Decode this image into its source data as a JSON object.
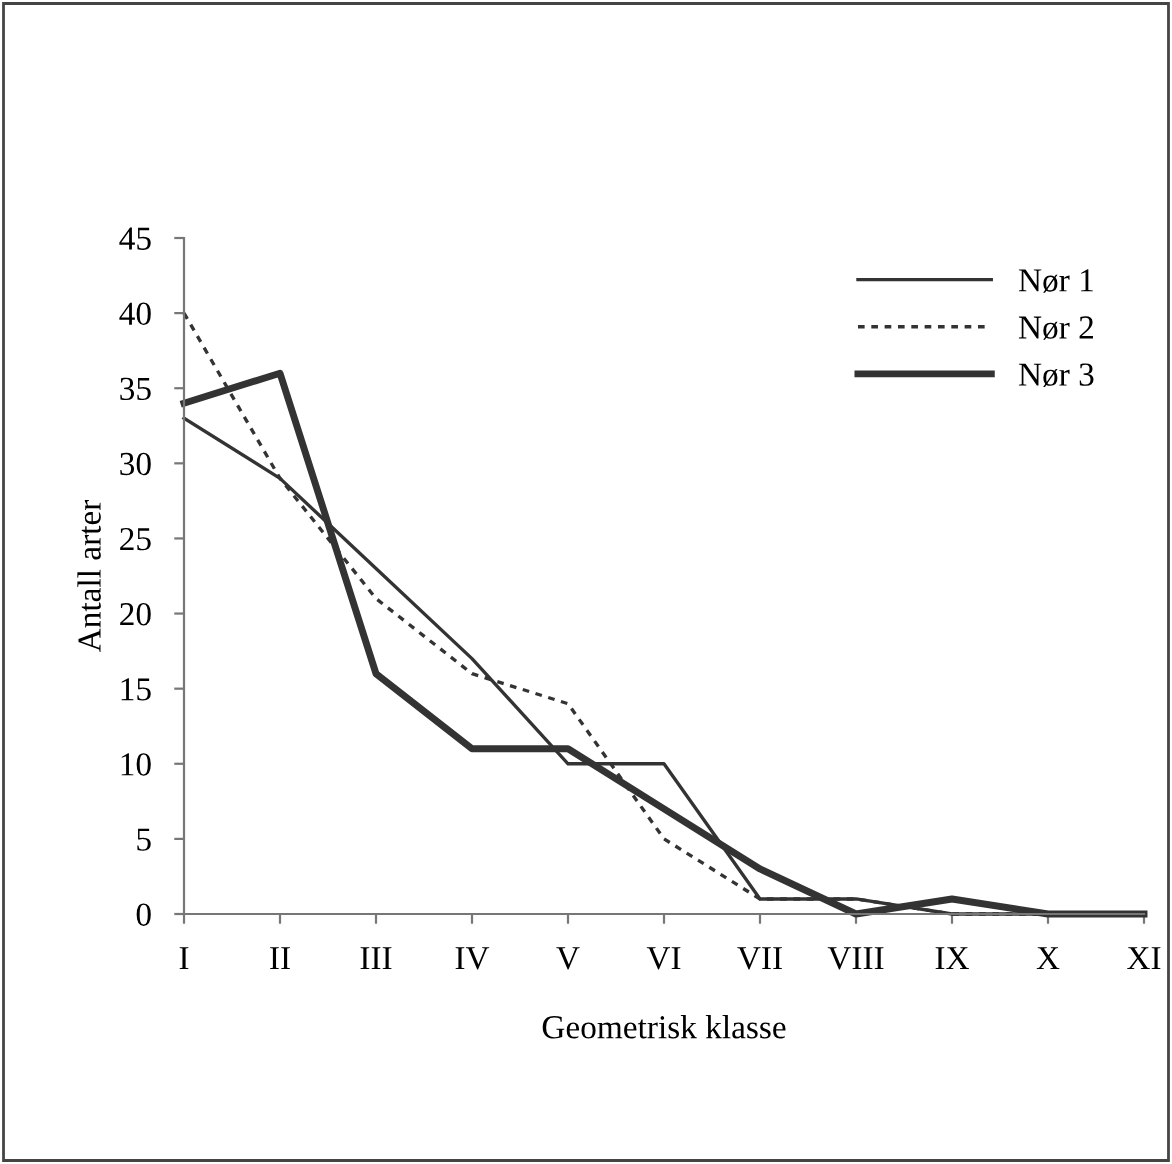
{
  "chart_data": {
    "type": "line",
    "xlabel": "Geometrisk klasse",
    "ylabel": "Antall arter",
    "categories": [
      "I",
      "II",
      "III",
      "IV",
      "V",
      "VI",
      "VII",
      "VIII",
      "IX",
      "X",
      "XI"
    ],
    "series": [
      {
        "name": "Nør 1",
        "color": "#333333",
        "line_style": "solid",
        "values": [
          33,
          29,
          23,
          17,
          10,
          10,
          1,
          1,
          0,
          0,
          0
        ]
      },
      {
        "name": "Nør 2",
        "color": "#333333",
        "line_style": "dotted",
        "values": [
          40,
          29,
          21,
          16,
          14,
          5,
          1,
          1,
          0,
          0,
          0
        ]
      },
      {
        "name": "Nør 3",
        "color": "#333333",
        "line_style": "solid",
        "values": [
          34,
          36,
          16,
          11,
          11,
          7,
          3,
          0,
          1,
          0,
          0
        ]
      }
    ],
    "ylim": [
      0,
      45
    ],
    "yticks": [
      0,
      5,
      10,
      15,
      20,
      25,
      30,
      35,
      40,
      45
    ],
    "grid": false,
    "legend": "top right",
    "marker": "none"
  }
}
